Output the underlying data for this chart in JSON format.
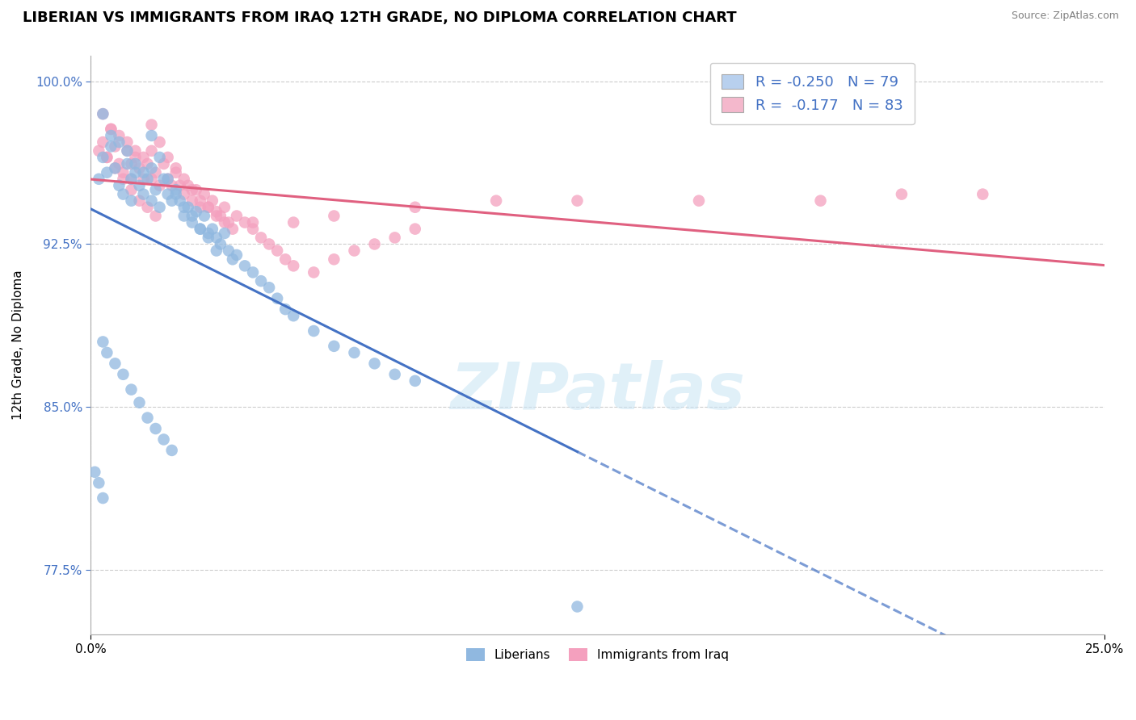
{
  "title": "LIBERIAN VS IMMIGRANTS FROM IRAQ 12TH GRADE, NO DIPLOMA CORRELATION CHART",
  "source_text": "Source: ZipAtlas.com",
  "ylabel": "12th Grade, No Diploma",
  "xlim": [
    0.0,
    0.25
  ],
  "ylim": [
    0.745,
    1.012
  ],
  "yticks": [
    0.775,
    0.85,
    0.925,
    1.0
  ],
  "ytick_labels": [
    "77.5%",
    "85.0%",
    "92.5%",
    "100.0%"
  ],
  "xticks": [
    0.0,
    0.25
  ],
  "xtick_labels": [
    "0.0%",
    "25.0%"
  ],
  "legend_r_items": [
    {
      "label": "R = -0.250   N = 79",
      "color": "#b8d0ee"
    },
    {
      "label": "R =  -0.177   N = 83",
      "color": "#f4b8cc"
    }
  ],
  "bottom_legend": [
    "Liberians",
    "Immigrants from Iraq"
  ],
  "watermark": "ZIPatlas",
  "series1_color": "#90b8e0",
  "series2_color": "#f4a0be",
  "trendline1_color": "#4472c4",
  "trendline2_color": "#e06080",
  "background_color": "#ffffff",
  "grid_color": "#cccccc",
  "title_fontsize": 13,
  "axis_label_fontsize": 11,
  "tick_fontsize": 11,
  "liberian_x": [
    0.002,
    0.003,
    0.004,
    0.005,
    0.006,
    0.007,
    0.008,
    0.009,
    0.01,
    0.01,
    0.011,
    0.012,
    0.013,
    0.014,
    0.015,
    0.015,
    0.016,
    0.017,
    0.018,
    0.019,
    0.02,
    0.021,
    0.022,
    0.023,
    0.024,
    0.025,
    0.026,
    0.027,
    0.028,
    0.029,
    0.03,
    0.031,
    0.032,
    0.033,
    0.034,
    0.035,
    0.036,
    0.038,
    0.04,
    0.042,
    0.044,
    0.046,
    0.048,
    0.05,
    0.055,
    0.06,
    0.065,
    0.07,
    0.075,
    0.08,
    0.003,
    0.005,
    0.007,
    0.009,
    0.011,
    0.013,
    0.015,
    0.017,
    0.019,
    0.021,
    0.023,
    0.025,
    0.027,
    0.029,
    0.031,
    0.003,
    0.004,
    0.006,
    0.008,
    0.01,
    0.012,
    0.014,
    0.016,
    0.018,
    0.02,
    0.001,
    0.002,
    0.003,
    0.12
  ],
  "liberian_y": [
    0.955,
    0.965,
    0.958,
    0.97,
    0.96,
    0.952,
    0.948,
    0.962,
    0.955,
    0.945,
    0.958,
    0.952,
    0.948,
    0.955,
    0.945,
    0.96,
    0.95,
    0.942,
    0.955,
    0.948,
    0.945,
    0.95,
    0.945,
    0.938,
    0.942,
    0.935,
    0.94,
    0.932,
    0.938,
    0.93,
    0.932,
    0.928,
    0.925,
    0.93,
    0.922,
    0.918,
    0.92,
    0.915,
    0.912,
    0.908,
    0.905,
    0.9,
    0.895,
    0.892,
    0.885,
    0.878,
    0.875,
    0.87,
    0.865,
    0.862,
    0.985,
    0.975,
    0.972,
    0.968,
    0.962,
    0.958,
    0.975,
    0.965,
    0.955,
    0.948,
    0.942,
    0.938,
    0.932,
    0.928,
    0.922,
    0.88,
    0.875,
    0.87,
    0.865,
    0.858,
    0.852,
    0.845,
    0.84,
    0.835,
    0.83,
    0.82,
    0.815,
    0.808,
    0.758
  ],
  "iraq_x": [
    0.002,
    0.003,
    0.004,
    0.005,
    0.006,
    0.007,
    0.008,
    0.009,
    0.01,
    0.01,
    0.011,
    0.012,
    0.013,
    0.014,
    0.015,
    0.015,
    0.016,
    0.017,
    0.018,
    0.019,
    0.02,
    0.021,
    0.022,
    0.023,
    0.024,
    0.025,
    0.026,
    0.027,
    0.028,
    0.029,
    0.03,
    0.031,
    0.032,
    0.033,
    0.034,
    0.035,
    0.036,
    0.038,
    0.04,
    0.042,
    0.044,
    0.046,
    0.048,
    0.05,
    0.055,
    0.06,
    0.065,
    0.07,
    0.075,
    0.08,
    0.003,
    0.005,
    0.007,
    0.009,
    0.011,
    0.013,
    0.015,
    0.017,
    0.019,
    0.021,
    0.023,
    0.025,
    0.027,
    0.029,
    0.031,
    0.033,
    0.04,
    0.05,
    0.06,
    0.08,
    0.1,
    0.12,
    0.15,
    0.18,
    0.2,
    0.22,
    0.004,
    0.006,
    0.008,
    0.01,
    0.012,
    0.014,
    0.016
  ],
  "iraq_y": [
    0.968,
    0.972,
    0.965,
    0.978,
    0.97,
    0.962,
    0.958,
    0.968,
    0.962,
    0.955,
    0.965,
    0.96,
    0.955,
    0.962,
    0.955,
    0.968,
    0.958,
    0.952,
    0.962,
    0.955,
    0.952,
    0.958,
    0.952,
    0.948,
    0.952,
    0.945,
    0.95,
    0.942,
    0.948,
    0.942,
    0.945,
    0.94,
    0.938,
    0.942,
    0.935,
    0.932,
    0.938,
    0.935,
    0.932,
    0.928,
    0.925,
    0.922,
    0.918,
    0.915,
    0.912,
    0.918,
    0.922,
    0.925,
    0.928,
    0.932,
    0.985,
    0.978,
    0.975,
    0.972,
    0.968,
    0.965,
    0.98,
    0.972,
    0.965,
    0.96,
    0.955,
    0.95,
    0.945,
    0.942,
    0.938,
    0.935,
    0.935,
    0.935,
    0.938,
    0.942,
    0.945,
    0.945,
    0.945,
    0.945,
    0.948,
    0.948,
    0.965,
    0.96,
    0.955,
    0.95,
    0.945,
    0.942,
    0.938
  ]
}
